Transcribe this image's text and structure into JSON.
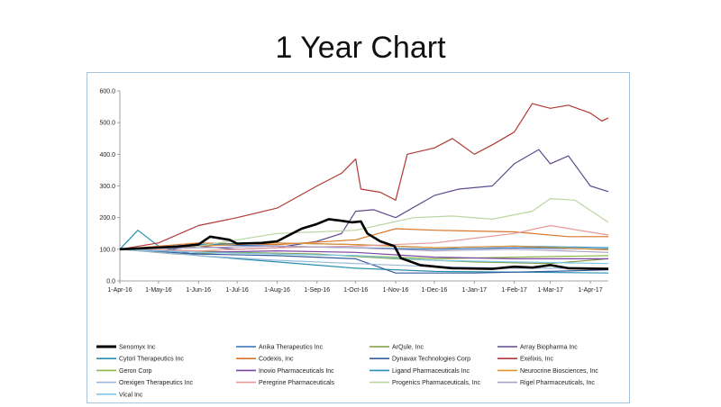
{
  "page": {
    "title": "1 Year Chart"
  },
  "chart_data": {
    "type": "line",
    "title": "1 Year Chart",
    "xlabel": "",
    "ylabel": "",
    "x_range": [
      "2016-04-01",
      "2017-04-15"
    ],
    "ylim": [
      0,
      600
    ],
    "y_ticks": [
      0,
      100,
      200,
      300,
      400,
      500,
      600
    ],
    "y_tick_labels": [
      "0.0",
      "100.0",
      "200.0",
      "300.0",
      "400.0",
      "500.0",
      "600.0"
    ],
    "x_ticks": [
      "2016-04-01",
      "2016-05-01",
      "2016-06-01",
      "2016-07-01",
      "2016-08-01",
      "2016-09-01",
      "2016-10-01",
      "2016-11-01",
      "2016-12-01",
      "2017-01-01",
      "2017-02-01",
      "2017-03-01",
      "2017-04-01"
    ],
    "x_tick_labels": [
      "1-Apr-16",
      "1-May-16",
      "1-Jun-16",
      "1-Jul-16",
      "1-Aug-16",
      "1-Sep-16",
      "1-Oct-16",
      "1-Nov-16",
      "1-Dec-16",
      "1-Jan-17",
      "1-Feb-17",
      "1-Mar-17",
      "1-Apr-17"
    ],
    "grid": false,
    "legend_position": "bottom",
    "series": [
      {
        "name": "Senomyx Inc",
        "color": "#000000",
        "highlight": true,
        "points": [
          [
            "2016-04-01",
            100
          ],
          [
            "2016-05-15",
            108
          ],
          [
            "2016-06-01",
            115
          ],
          [
            "2016-06-10",
            140
          ],
          [
            "2016-06-25",
            130
          ],
          [
            "2016-07-01",
            118
          ],
          [
            "2016-07-20",
            120
          ],
          [
            "2016-08-01",
            125
          ],
          [
            "2016-08-20",
            165
          ],
          [
            "2016-09-01",
            180
          ],
          [
            "2016-09-10",
            195
          ],
          [
            "2016-09-20",
            190
          ],
          [
            "2016-09-28",
            185
          ],
          [
            "2016-10-05",
            188
          ],
          [
            "2016-10-10",
            150
          ],
          [
            "2016-10-20",
            125
          ],
          [
            "2016-10-31",
            110
          ],
          [
            "2016-11-05",
            72
          ],
          [
            "2016-11-20",
            50
          ],
          [
            "2016-12-15",
            40
          ],
          [
            "2017-01-15",
            38
          ],
          [
            "2017-02-01",
            45
          ],
          [
            "2017-02-15",
            42
          ],
          [
            "2017-03-01",
            50
          ],
          [
            "2017-03-15",
            40
          ],
          [
            "2017-04-15",
            38
          ]
        ]
      },
      {
        "name": "Anika Therapeutics Inc",
        "color": "#2e6eb5",
        "points": [
          [
            "2016-04-01",
            100
          ],
          [
            "2016-06-01",
            115
          ],
          [
            "2016-08-01",
            110
          ],
          [
            "2016-10-01",
            105
          ],
          [
            "2016-12-01",
            100
          ],
          [
            "2017-02-01",
            105
          ],
          [
            "2017-04-15",
            100
          ]
        ]
      },
      {
        "name": "ArQule, Inc",
        "color": "#7f9a3c",
        "points": [
          [
            "2016-04-01",
            100
          ],
          [
            "2016-05-15",
            85
          ],
          [
            "2016-07-01",
            90
          ],
          [
            "2016-09-01",
            85
          ],
          [
            "2016-11-01",
            70
          ],
          [
            "2017-01-01",
            60
          ],
          [
            "2017-03-01",
            55
          ],
          [
            "2017-04-15",
            70
          ]
        ]
      },
      {
        "name": "Array Biopharma Inc",
        "color": "#5f4a8b",
        "points": [
          [
            "2016-04-01",
            100
          ],
          [
            "2016-05-01",
            95
          ],
          [
            "2016-06-01",
            110
          ],
          [
            "2016-07-01",
            100
          ],
          [
            "2016-08-01",
            105
          ],
          [
            "2016-09-01",
            125
          ],
          [
            "2016-09-20",
            150
          ],
          [
            "2016-10-01",
            220
          ],
          [
            "2016-10-15",
            225
          ],
          [
            "2016-11-01",
            200
          ],
          [
            "2016-12-01",
            270
          ],
          [
            "2016-12-20",
            290
          ],
          [
            "2017-01-15",
            300
          ],
          [
            "2017-02-01",
            370
          ],
          [
            "2017-02-20",
            415
          ],
          [
            "2017-03-01",
            370
          ],
          [
            "2017-03-15",
            395
          ],
          [
            "2017-04-01",
            300
          ],
          [
            "2017-04-15",
            282
          ]
        ]
      },
      {
        "name": "Cytori Therapeutics Inc",
        "color": "#2a8fb0",
        "points": [
          [
            "2016-04-01",
            100
          ],
          [
            "2016-04-15",
            160
          ],
          [
            "2016-05-01",
            110
          ],
          [
            "2016-06-01",
            80
          ],
          [
            "2016-08-01",
            60
          ],
          [
            "2016-10-01",
            40
          ],
          [
            "2016-12-01",
            30
          ],
          [
            "2017-02-01",
            28
          ],
          [
            "2017-04-15",
            25
          ]
        ]
      },
      {
        "name": "Codexis, Inc",
        "color": "#d9762b",
        "points": [
          [
            "2016-04-01",
            100
          ],
          [
            "2016-06-01",
            120
          ],
          [
            "2016-08-01",
            115
          ],
          [
            "2016-10-01",
            130
          ],
          [
            "2016-11-01",
            165
          ],
          [
            "2016-12-01",
            160
          ],
          [
            "2017-02-01",
            155
          ],
          [
            "2017-03-15",
            140
          ],
          [
            "2017-04-15",
            140
          ]
        ]
      },
      {
        "name": "Dynavax Technologies Corp",
        "color": "#355d9b",
        "points": [
          [
            "2016-04-01",
            100
          ],
          [
            "2016-06-01",
            85
          ],
          [
            "2016-08-01",
            80
          ],
          [
            "2016-10-01",
            70
          ],
          [
            "2016-11-01",
            25
          ],
          [
            "2017-01-01",
            25
          ],
          [
            "2017-03-01",
            30
          ],
          [
            "2017-04-15",
            35
          ]
        ]
      },
      {
        "name": "Exelixis, Inc",
        "color": "#b03a36",
        "points": [
          [
            "2016-04-01",
            100
          ],
          [
            "2016-05-01",
            120
          ],
          [
            "2016-06-01",
            175
          ],
          [
            "2016-07-01",
            200
          ],
          [
            "2016-08-01",
            230
          ],
          [
            "2016-09-01",
            300
          ],
          [
            "2016-09-20",
            340
          ],
          [
            "2016-10-01",
            385
          ],
          [
            "2016-10-05",
            290
          ],
          [
            "2016-10-20",
            280
          ],
          [
            "2016-11-01",
            255
          ],
          [
            "2016-11-10",
            400
          ],
          [
            "2016-12-01",
            420
          ],
          [
            "2016-12-15",
            450
          ],
          [
            "2017-01-01",
            400
          ],
          [
            "2017-01-15",
            430
          ],
          [
            "2017-02-01",
            470
          ],
          [
            "2017-02-15",
            560
          ],
          [
            "2017-03-01",
            545
          ],
          [
            "2017-03-15",
            555
          ],
          [
            "2017-04-01",
            530
          ],
          [
            "2017-04-10",
            505
          ],
          [
            "2017-04-15",
            515
          ]
        ]
      },
      {
        "name": "Geron Corp",
        "color": "#8cb849",
        "points": [
          [
            "2016-04-01",
            100
          ],
          [
            "2016-06-01",
            95
          ],
          [
            "2016-08-01",
            85
          ],
          [
            "2016-10-01",
            80
          ],
          [
            "2016-12-01",
            70
          ],
          [
            "2017-02-01",
            75
          ],
          [
            "2017-04-15",
            80
          ]
        ]
      },
      {
        "name": "Inovio Pharmaceuticals Inc",
        "color": "#7a44a2",
        "points": [
          [
            "2016-04-01",
            100
          ],
          [
            "2016-06-01",
            90
          ],
          [
            "2016-08-01",
            95
          ],
          [
            "2016-10-01",
            90
          ],
          [
            "2016-12-01",
            75
          ],
          [
            "2017-02-01",
            70
          ],
          [
            "2017-04-15",
            70
          ]
        ]
      },
      {
        "name": "Ligand Pharmaceuticals Inc",
        "color": "#2a8eb8",
        "points": [
          [
            "2016-04-01",
            100
          ],
          [
            "2016-06-01",
            115
          ],
          [
            "2016-08-01",
            120
          ],
          [
            "2016-10-01",
            115
          ],
          [
            "2016-12-01",
            105
          ],
          [
            "2017-02-01",
            110
          ],
          [
            "2017-04-15",
            105
          ]
        ]
      },
      {
        "name": "Neurocrine Biosciences, Inc",
        "color": "#e3912f",
        "points": [
          [
            "2016-04-01",
            100
          ],
          [
            "2016-06-01",
            110
          ],
          [
            "2016-08-01",
            120
          ],
          [
            "2016-10-01",
            115
          ],
          [
            "2016-12-01",
            105
          ],
          [
            "2017-02-01",
            110
          ],
          [
            "2017-04-15",
            98
          ]
        ]
      },
      {
        "name": "Orexigen Therapeutics Inc",
        "color": "#9bb8d9",
        "points": [
          [
            "2016-04-01",
            100
          ],
          [
            "2016-06-01",
            80
          ],
          [
            "2016-08-01",
            65
          ],
          [
            "2016-10-01",
            55
          ],
          [
            "2016-12-01",
            45
          ],
          [
            "2017-02-01",
            40
          ],
          [
            "2017-04-15",
            40
          ]
        ]
      },
      {
        "name": "Peregrine Pharmaceuticals",
        "color": "#e79a96",
        "points": [
          [
            "2016-04-01",
            100
          ],
          [
            "2016-06-01",
            95
          ],
          [
            "2016-08-01",
            105
          ],
          [
            "2016-10-01",
            110
          ],
          [
            "2016-12-01",
            120
          ],
          [
            "2017-02-01",
            150
          ],
          [
            "2017-03-01",
            175
          ],
          [
            "2017-04-15",
            145
          ]
        ]
      },
      {
        "name": "Progenics Pharmaceuticals, Inc",
        "color": "#bcd5a3",
        "points": [
          [
            "2016-04-01",
            100
          ],
          [
            "2016-06-01",
            110
          ],
          [
            "2016-08-01",
            150
          ],
          [
            "2016-10-01",
            160
          ],
          [
            "2016-11-15",
            200
          ],
          [
            "2016-12-15",
            205
          ],
          [
            "2017-01-15",
            195
          ],
          [
            "2017-02-15",
            220
          ],
          [
            "2017-03-01",
            260
          ],
          [
            "2017-03-20",
            255
          ],
          [
            "2017-04-15",
            185
          ]
        ]
      },
      {
        "name": "Rigel Pharmaceuticals, Inc",
        "color": "#a9a1c5",
        "points": [
          [
            "2016-04-01",
            100
          ],
          [
            "2016-06-01",
            105
          ],
          [
            "2016-08-01",
            110
          ],
          [
            "2016-10-01",
            105
          ],
          [
            "2016-12-01",
            95
          ],
          [
            "2017-02-01",
            100
          ],
          [
            "2017-04-15",
            90
          ]
        ]
      },
      {
        "name": "Vical Inc",
        "color": "#7fc8e8",
        "points": [
          [
            "2016-04-01",
            100
          ],
          [
            "2016-06-01",
            90
          ],
          [
            "2016-08-01",
            85
          ],
          [
            "2016-10-01",
            80
          ],
          [
            "2016-12-01",
            65
          ],
          [
            "2017-02-01",
            60
          ],
          [
            "2017-04-15",
            55
          ]
        ]
      }
    ]
  }
}
